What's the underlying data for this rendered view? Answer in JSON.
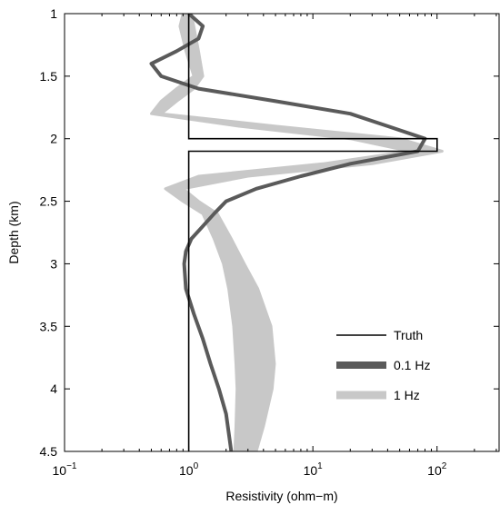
{
  "chart_data": {
    "type": "line",
    "xlabel": "Resistivity (ohm−m)",
    "ylabel": "Depth (km)",
    "x_scale": "log",
    "xlim": [
      0.1,
      316
    ],
    "ylim": [
      1,
      4.5
    ],
    "y_inverted": true,
    "grid": false,
    "legend_position": "lower-right",
    "x_ticks": [
      {
        "value": 0.1,
        "base": "10",
        "exp": "−1"
      },
      {
        "value": 1,
        "base": "10",
        "exp": "0"
      },
      {
        "value": 10,
        "base": "10",
        "exp": "1"
      },
      {
        "value": 100,
        "base": "10",
        "exp": "2"
      }
    ],
    "y_ticks": [
      {
        "value": 1,
        "label": "1"
      },
      {
        "value": 1.5,
        "label": "1.5"
      },
      {
        "value": 2,
        "label": "2"
      },
      {
        "value": 2.5,
        "label": "2.5"
      },
      {
        "value": 3,
        "label": "3"
      },
      {
        "value": 3.5,
        "label": "3.5"
      },
      {
        "value": 4,
        "label": "4"
      },
      {
        "value": 4.5,
        "label": "4.5"
      }
    ],
    "series": [
      {
        "name": "Truth",
        "color": "#000000",
        "style": "line",
        "points": [
          [
            1,
            1
          ],
          [
            1,
            2
          ],
          [
            100,
            2
          ],
          [
            100,
            2.1
          ],
          [
            1,
            2.1
          ],
          [
            1,
            4.5
          ]
        ]
      },
      {
        "name": "0.1 Hz",
        "color": "#5a5a5a",
        "style": "thick",
        "points": [
          [
            1,
            1
          ],
          [
            1.3,
            1.1
          ],
          [
            1.2,
            1.2
          ],
          [
            0.8,
            1.3
          ],
          [
            0.5,
            1.4
          ],
          [
            0.6,
            1.5
          ],
          [
            1.2,
            1.6
          ],
          [
            5,
            1.7
          ],
          [
            20,
            1.8
          ],
          [
            40,
            1.9
          ],
          [
            80,
            2.0
          ],
          [
            70,
            2.1
          ],
          [
            20,
            2.2
          ],
          [
            8,
            2.3
          ],
          [
            3.5,
            2.4
          ],
          [
            2,
            2.5
          ],
          [
            1.6,
            2.6
          ],
          [
            1.3,
            2.7
          ],
          [
            1.05,
            2.8
          ],
          [
            0.95,
            2.9
          ],
          [
            0.92,
            3.0
          ],
          [
            0.95,
            3.2
          ],
          [
            1.1,
            3.4
          ],
          [
            1.3,
            3.6
          ],
          [
            1.5,
            3.8
          ],
          [
            1.75,
            4.0
          ],
          [
            2.0,
            4.2
          ],
          [
            2.2,
            4.5
          ]
        ]
      },
      {
        "name": "1 Hz",
        "color": "#c8c8c8",
        "style": "band",
        "upper": [
          [
            1.05,
            1.0
          ],
          [
            1.1,
            1.1
          ],
          [
            1.2,
            1.3
          ],
          [
            1.3,
            1.5
          ],
          [
            1.1,
            1.6
          ],
          [
            0.8,
            1.7
          ],
          [
            0.6,
            1.8
          ],
          [
            5,
            1.9
          ],
          [
            50,
            2.0
          ],
          [
            110,
            2.1
          ],
          [
            30,
            2.2
          ],
          [
            3,
            2.3
          ],
          [
            0.9,
            2.4
          ],
          [
            1.2,
            2.5
          ],
          [
            1.7,
            2.6
          ],
          [
            2.2,
            2.8
          ],
          [
            2.8,
            3.0
          ],
          [
            3.6,
            3.2
          ],
          [
            4.6,
            3.5
          ],
          [
            4.9,
            3.8
          ],
          [
            4.7,
            4.0
          ],
          [
            4.0,
            4.3
          ],
          [
            3.5,
            4.5
          ]
        ],
        "lower": [
          [
            0.9,
            1.0
          ],
          [
            0.85,
            1.1
          ],
          [
            0.95,
            1.3
          ],
          [
            1.1,
            1.5
          ],
          [
            0.8,
            1.6
          ],
          [
            0.6,
            1.7
          ],
          [
            0.5,
            1.8
          ],
          [
            2.5,
            1.9
          ],
          [
            20,
            2.0
          ],
          [
            60,
            2.1
          ],
          [
            12,
            2.2
          ],
          [
            1.2,
            2.3
          ],
          [
            0.65,
            2.4
          ],
          [
            0.9,
            2.5
          ],
          [
            1.3,
            2.6
          ],
          [
            1.6,
            2.8
          ],
          [
            1.9,
            3.0
          ],
          [
            2.1,
            3.2
          ],
          [
            2.3,
            3.5
          ],
          [
            2.4,
            3.8
          ],
          [
            2.45,
            4.0
          ],
          [
            2.4,
            4.3
          ],
          [
            2.35,
            4.5
          ]
        ]
      }
    ]
  }
}
